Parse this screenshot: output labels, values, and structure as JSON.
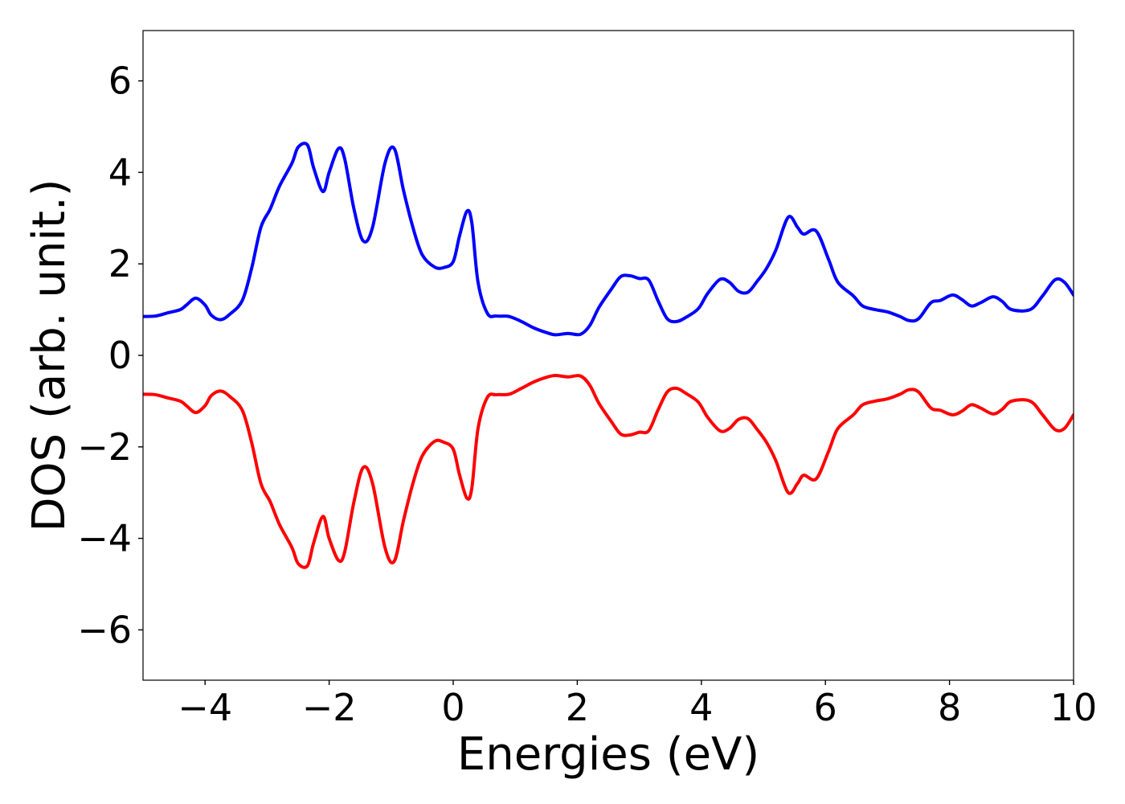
{
  "chart_data": {
    "type": "line",
    "xlabel": "Energies (eV)",
    "ylabel": "DOS (arb. unit.)",
    "xlim": [
      -5,
      10
    ],
    "ylim": [
      -7.1,
      7.1
    ],
    "xticks": [
      -4,
      -2,
      0,
      2,
      4,
      6,
      8,
      10
    ],
    "xtick_labels": [
      "−4",
      "−2",
      "0",
      "2",
      "4",
      "6",
      "8",
      "10"
    ],
    "yticks": [
      -6,
      -4,
      -2,
      0,
      2,
      4,
      6
    ],
    "ytick_labels": [
      "−6",
      "−4",
      "−2",
      "0",
      "2",
      "4",
      "6"
    ],
    "grid": false,
    "series": [
      {
        "color": "#0000ff",
        "points": [
          [
            -5.0,
            0.85
          ],
          [
            -4.8,
            0.86
          ],
          [
            -4.6,
            0.93
          ],
          [
            -4.4,
            1.0
          ],
          [
            -4.3,
            1.1
          ],
          [
            -4.15,
            1.25
          ],
          [
            -4.0,
            1.1
          ],
          [
            -3.9,
            0.88
          ],
          [
            -3.75,
            0.78
          ],
          [
            -3.6,
            0.9
          ],
          [
            -3.4,
            1.2
          ],
          [
            -3.25,
            1.9
          ],
          [
            -3.1,
            2.8
          ],
          [
            -2.95,
            3.2
          ],
          [
            -2.8,
            3.7
          ],
          [
            -2.6,
            4.2
          ],
          [
            -2.5,
            4.55
          ],
          [
            -2.35,
            4.6
          ],
          [
            -2.25,
            4.1
          ],
          [
            -2.1,
            3.58
          ],
          [
            -2.0,
            4.0
          ],
          [
            -1.85,
            4.52
          ],
          [
            -1.75,
            4.3
          ],
          [
            -1.6,
            3.2
          ],
          [
            -1.45,
            2.5
          ],
          [
            -1.3,
            2.8
          ],
          [
            -1.1,
            4.2
          ],
          [
            -0.95,
            4.52
          ],
          [
            -0.8,
            3.6
          ],
          [
            -0.65,
            2.8
          ],
          [
            -0.5,
            2.2
          ],
          [
            -0.3,
            1.93
          ],
          [
            -0.15,
            1.92
          ],
          [
            0.0,
            2.05
          ],
          [
            0.1,
            2.6
          ],
          [
            0.22,
            3.15
          ],
          [
            0.3,
            2.9
          ],
          [
            0.4,
            1.6
          ],
          [
            0.55,
            0.92
          ],
          [
            0.7,
            0.86
          ],
          [
            0.9,
            0.85
          ],
          [
            1.1,
            0.74
          ],
          [
            1.3,
            0.6
          ],
          [
            1.5,
            0.5
          ],
          [
            1.65,
            0.45
          ],
          [
            1.85,
            0.48
          ],
          [
            2.05,
            0.46
          ],
          [
            2.2,
            0.65
          ],
          [
            2.35,
            1.05
          ],
          [
            2.55,
            1.45
          ],
          [
            2.7,
            1.72
          ],
          [
            2.85,
            1.74
          ],
          [
            3.0,
            1.68
          ],
          [
            3.15,
            1.65
          ],
          [
            3.3,
            1.2
          ],
          [
            3.45,
            0.8
          ],
          [
            3.6,
            0.74
          ],
          [
            3.75,
            0.83
          ],
          [
            3.95,
            1.02
          ],
          [
            4.1,
            1.35
          ],
          [
            4.3,
            1.66
          ],
          [
            4.45,
            1.6
          ],
          [
            4.6,
            1.4
          ],
          [
            4.75,
            1.38
          ],
          [
            4.9,
            1.62
          ],
          [
            5.05,
            1.9
          ],
          [
            5.2,
            2.3
          ],
          [
            5.4,
            3.02
          ],
          [
            5.55,
            2.8
          ],
          [
            5.65,
            2.65
          ],
          [
            5.85,
            2.72
          ],
          [
            6.05,
            2.1
          ],
          [
            6.2,
            1.6
          ],
          [
            6.45,
            1.3
          ],
          [
            6.6,
            1.08
          ],
          [
            6.8,
            1.0
          ],
          [
            7.0,
            0.95
          ],
          [
            7.2,
            0.85
          ],
          [
            7.35,
            0.76
          ],
          [
            7.5,
            0.8
          ],
          [
            7.7,
            1.15
          ],
          [
            7.85,
            1.2
          ],
          [
            8.05,
            1.32
          ],
          [
            8.2,
            1.22
          ],
          [
            8.35,
            1.08
          ],
          [
            8.5,
            1.15
          ],
          [
            8.7,
            1.28
          ],
          [
            8.85,
            1.18
          ],
          [
            9.0,
            1.0
          ],
          [
            9.3,
            1.0
          ],
          [
            9.5,
            1.3
          ],
          [
            9.7,
            1.65
          ],
          [
            9.85,
            1.6
          ],
          [
            10.0,
            1.32
          ]
        ]
      },
      {
        "color": "#ff0000",
        "points": [
          [
            -5.0,
            -0.85
          ],
          [
            -4.8,
            -0.86
          ],
          [
            -4.6,
            -0.93
          ],
          [
            -4.4,
            -1.0
          ],
          [
            -4.3,
            -1.1
          ],
          [
            -4.15,
            -1.25
          ],
          [
            -4.0,
            -1.1
          ],
          [
            -3.9,
            -0.88
          ],
          [
            -3.75,
            -0.78
          ],
          [
            -3.6,
            -0.9
          ],
          [
            -3.4,
            -1.2
          ],
          [
            -3.25,
            -1.9
          ],
          [
            -3.1,
            -2.8
          ],
          [
            -2.95,
            -3.2
          ],
          [
            -2.8,
            -3.7
          ],
          [
            -2.6,
            -4.2
          ],
          [
            -2.5,
            -4.55
          ],
          [
            -2.35,
            -4.6
          ],
          [
            -2.25,
            -4.1
          ],
          [
            -2.1,
            -3.52
          ],
          [
            -2.0,
            -4.0
          ],
          [
            -1.85,
            -4.48
          ],
          [
            -1.75,
            -4.3
          ],
          [
            -1.6,
            -3.2
          ],
          [
            -1.45,
            -2.45
          ],
          [
            -1.3,
            -2.8
          ],
          [
            -1.1,
            -4.2
          ],
          [
            -0.95,
            -4.5
          ],
          [
            -0.8,
            -3.6
          ],
          [
            -0.65,
            -2.8
          ],
          [
            -0.5,
            -2.2
          ],
          [
            -0.3,
            -1.88
          ],
          [
            -0.15,
            -1.9
          ],
          [
            0.0,
            -2.05
          ],
          [
            0.1,
            -2.6
          ],
          [
            0.22,
            -3.12
          ],
          [
            0.3,
            -2.9
          ],
          [
            0.4,
            -1.6
          ],
          [
            0.55,
            -0.92
          ],
          [
            0.7,
            -0.86
          ],
          [
            0.9,
            -0.85
          ],
          [
            1.1,
            -0.72
          ],
          [
            1.3,
            -0.58
          ],
          [
            1.5,
            -0.48
          ],
          [
            1.65,
            -0.44
          ],
          [
            1.85,
            -0.47
          ],
          [
            2.05,
            -0.45
          ],
          [
            2.2,
            -0.65
          ],
          [
            2.35,
            -1.05
          ],
          [
            2.55,
            -1.45
          ],
          [
            2.7,
            -1.72
          ],
          [
            2.85,
            -1.74
          ],
          [
            3.0,
            -1.68
          ],
          [
            3.15,
            -1.65
          ],
          [
            3.3,
            -1.2
          ],
          [
            3.45,
            -0.8
          ],
          [
            3.6,
            -0.72
          ],
          [
            3.75,
            -0.83
          ],
          [
            3.95,
            -1.02
          ],
          [
            4.1,
            -1.35
          ],
          [
            4.3,
            -1.65
          ],
          [
            4.45,
            -1.6
          ],
          [
            4.6,
            -1.4
          ],
          [
            4.75,
            -1.38
          ],
          [
            4.9,
            -1.62
          ],
          [
            5.05,
            -1.9
          ],
          [
            5.2,
            -2.3
          ],
          [
            5.4,
            -3.0
          ],
          [
            5.55,
            -2.8
          ],
          [
            5.65,
            -2.62
          ],
          [
            5.85,
            -2.7
          ],
          [
            6.05,
            -2.1
          ],
          [
            6.2,
            -1.6
          ],
          [
            6.45,
            -1.3
          ],
          [
            6.6,
            -1.08
          ],
          [
            6.8,
            -1.0
          ],
          [
            7.0,
            -0.95
          ],
          [
            7.2,
            -0.85
          ],
          [
            7.35,
            -0.75
          ],
          [
            7.5,
            -0.8
          ],
          [
            7.7,
            -1.15
          ],
          [
            7.85,
            -1.2
          ],
          [
            8.05,
            -1.3
          ],
          [
            8.2,
            -1.22
          ],
          [
            8.35,
            -1.08
          ],
          [
            8.5,
            -1.15
          ],
          [
            8.7,
            -1.28
          ],
          [
            8.85,
            -1.18
          ],
          [
            9.0,
            -1.0
          ],
          [
            9.3,
            -1.0
          ],
          [
            9.5,
            -1.3
          ],
          [
            9.7,
            -1.62
          ],
          [
            9.85,
            -1.6
          ],
          [
            10.0,
            -1.3
          ]
        ]
      }
    ]
  }
}
